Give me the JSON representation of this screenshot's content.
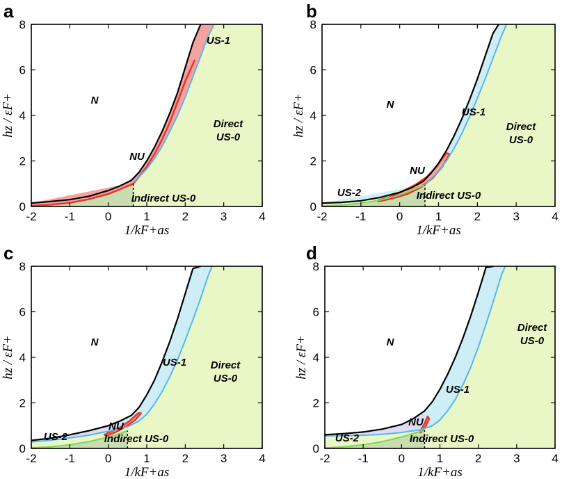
{
  "figure": {
    "colors": {
      "direct_fill": "#e9f7c6",
      "indirect_fill": "#c9ddb0",
      "us1_fill": "#cdeef7",
      "us2_fill": "#dcdcf2",
      "red_fill": "#f4a3a0",
      "red_line": "#e8342a",
      "blue_line": "#56b8e6",
      "green_line": "#7cd650",
      "black_line": "#000000"
    }
  },
  "chart_data": [
    {
      "panel": "a",
      "type": "area",
      "xlabel": "1/kF+as",
      "ylabel": "hz / εF+",
      "xlim": [
        -2,
        4
      ],
      "ylim": [
        0,
        8
      ],
      "xticks": [
        -2,
        -1,
        0,
        1,
        2,
        3,
        4
      ],
      "yticks": [
        0,
        2,
        4,
        6,
        8
      ],
      "regions": [
        {
          "id": "N",
          "lines": [
            "N"
          ]
        },
        {
          "id": "NU",
          "lines": [
            "NU"
          ]
        },
        {
          "id": "US1",
          "lines": [
            "US-1"
          ]
        },
        {
          "id": "Direct",
          "lines": [
            "Direct",
            "US-0"
          ]
        },
        {
          "id": "Indirect",
          "lines": [
            "Indirect US-0"
          ]
        }
      ],
      "series": [
        {
          "name": "N boundary (black)",
          "x": [
            -2,
            -1.5,
            -1,
            -0.5,
            0,
            0.3,
            0.6,
            0.8,
            1.0,
            1.2,
            1.4,
            1.6,
            1.8,
            2.0,
            2.2,
            2.4
          ],
          "y": [
            0.15,
            0.22,
            0.3,
            0.45,
            0.7,
            0.9,
            1.15,
            1.5,
            2.0,
            2.6,
            3.3,
            4.1,
            5.0,
            6.1,
            7.2,
            8.0
          ]
        },
        {
          "name": "US-1 lower boundary (blue)",
          "x": [
            0.65,
            0.8,
            1.0,
            1.2,
            1.4,
            1.6,
            1.8,
            2.0,
            2.2,
            2.4,
            2.6,
            2.75
          ],
          "y": [
            1.05,
            1.3,
            1.65,
            2.1,
            2.65,
            3.3,
            4.0,
            4.8,
            5.7,
            6.6,
            7.5,
            8.0
          ]
        },
        {
          "name": "Indirect upper boundary (red)",
          "x": [
            -2,
            -1.5,
            -1,
            -0.5,
            0,
            0.3,
            0.65,
            0.8,
            1.0,
            1.2,
            1.4,
            1.6,
            1.8,
            2.0,
            2.25
          ],
          "y": [
            0.03,
            0.08,
            0.16,
            0.32,
            0.55,
            0.75,
            1.0,
            1.3,
            1.75,
            2.3,
            2.95,
            3.7,
            4.6,
            5.5,
            6.45
          ]
        },
        {
          "name": "Indirect/Direct divider",
          "x": [
            0.65,
            0.65
          ],
          "y": [
            0,
            1.0
          ]
        }
      ]
    },
    {
      "panel": "b",
      "type": "area",
      "xlabel": "1/kF+as",
      "ylabel": "hz / εF+",
      "xlim": [
        -2,
        4
      ],
      "ylim": [
        0,
        8
      ],
      "xticks": [
        -2,
        -1,
        0,
        1,
        2,
        3,
        4
      ],
      "yticks": [
        0,
        2,
        4,
        6,
        8
      ],
      "regions": [
        {
          "id": "N",
          "lines": [
            "N"
          ]
        },
        {
          "id": "NU",
          "lines": [
            "NU"
          ]
        },
        {
          "id": "US1",
          "lines": [
            "US-1"
          ]
        },
        {
          "id": "US2",
          "lines": [
            "US-2"
          ]
        },
        {
          "id": "Direct",
          "lines": [
            "Direct",
            "US-0"
          ]
        },
        {
          "id": "Indirect",
          "lines": [
            "Indirect US-0"
          ]
        }
      ],
      "series": [
        {
          "name": "N boundary (black)",
          "x": [
            -2,
            -1.5,
            -1,
            -0.5,
            0,
            0.3,
            0.6,
            0.8,
            1.0,
            1.2,
            1.4,
            1.6,
            1.8,
            2.0,
            2.2,
            2.4,
            2.55
          ],
          "y": [
            0.15,
            0.18,
            0.25,
            0.4,
            0.62,
            0.82,
            1.1,
            1.45,
            1.9,
            2.45,
            3.1,
            3.85,
            4.7,
            5.6,
            6.6,
            7.6,
            8.0
          ]
        },
        {
          "name": "US-1 lower boundary (blue)",
          "x": [
            0.65,
            0.8,
            1.0,
            1.2,
            1.4,
            1.6,
            1.8,
            2.0,
            2.2,
            2.4,
            2.6,
            2.75
          ],
          "y": [
            0.95,
            1.2,
            1.55,
            2.0,
            2.55,
            3.2,
            3.95,
            4.75,
            5.6,
            6.5,
            7.4,
            8.0
          ]
        },
        {
          "name": "Indirect upper boundary (green)",
          "x": [
            -2,
            -1.5,
            -1,
            -0.5,
            0,
            0.3,
            0.65
          ],
          "y": [
            0.02,
            0.06,
            0.14,
            0.28,
            0.5,
            0.7,
            0.95
          ]
        },
        {
          "name": "Indirect/Direct divider",
          "x": [
            0.65,
            0.65
          ],
          "y": [
            0,
            0.95
          ]
        }
      ]
    },
    {
      "panel": "c",
      "type": "area",
      "xlabel": "1/kF+as",
      "ylabel": "hz / εF+",
      "xlim": [
        -2,
        4
      ],
      "ylim": [
        0,
        8
      ],
      "xticks": [
        -2,
        -1,
        0,
        1,
        2,
        3,
        4
      ],
      "yticks": [
        0,
        2,
        4,
        6,
        8
      ],
      "regions": [
        {
          "id": "N",
          "lines": [
            "N"
          ]
        },
        {
          "id": "NU",
          "lines": [
            "NU"
          ]
        },
        {
          "id": "US1",
          "lines": [
            "US-1"
          ]
        },
        {
          "id": "US2",
          "lines": [
            "US-2"
          ]
        },
        {
          "id": "Direct",
          "lines": [
            "Direct",
            "US-0"
          ]
        },
        {
          "id": "Indirect",
          "lines": [
            "Indirect US-0"
          ]
        }
      ],
      "series": [
        {
          "name": "N boundary (black)",
          "x": [
            -2,
            -1.5,
            -1,
            -0.5,
            0,
            0.3,
            0.6,
            0.8,
            1.0,
            1.2,
            1.4,
            1.6,
            1.8,
            2.0,
            2.2,
            2.4
          ],
          "y": [
            0.35,
            0.45,
            0.6,
            0.78,
            1.0,
            1.2,
            1.45,
            1.8,
            2.35,
            3.0,
            3.8,
            4.7,
            5.7,
            6.8,
            7.9,
            8.0
          ]
        },
        {
          "name": "US-1 lower boundary (blue)",
          "x": [
            -2,
            -1.5,
            -1,
            -0.5,
            0,
            0.5,
            0.8,
            1.0,
            1.2,
            1.4,
            1.6,
            1.8,
            2.0,
            2.2,
            2.4,
            2.6,
            2.7
          ],
          "y": [
            0.28,
            0.36,
            0.46,
            0.58,
            0.75,
            0.95,
            1.2,
            1.5,
            1.95,
            2.5,
            3.15,
            3.9,
            4.75,
            5.65,
            6.6,
            7.6,
            8.0
          ]
        },
        {
          "name": "Indirect upper boundary (green)",
          "x": [
            -2,
            -1.5,
            -1,
            -0.5,
            0,
            0.3,
            0.5
          ],
          "y": [
            0.02,
            0.07,
            0.16,
            0.3,
            0.5,
            0.65,
            0.78
          ]
        },
        {
          "name": "Indirect/Direct divider",
          "x": [
            0.5,
            0.5
          ],
          "y": [
            0,
            0.78
          ]
        }
      ]
    },
    {
      "panel": "d",
      "type": "area",
      "xlabel": "1/kF+as",
      "ylabel": "hz / εF+",
      "xlim": [
        -2,
        4
      ],
      "ylim": [
        0,
        8
      ],
      "xticks": [
        -2,
        -1,
        0,
        1,
        2,
        3,
        4
      ],
      "yticks": [
        0,
        2,
        4,
        6,
        8
      ],
      "regions": [
        {
          "id": "N",
          "lines": [
            "N"
          ]
        },
        {
          "id": "NU",
          "lines": [
            "NU"
          ]
        },
        {
          "id": "US1",
          "lines": [
            "US-1"
          ]
        },
        {
          "id": "US2",
          "lines": [
            "US-2"
          ]
        },
        {
          "id": "Direct",
          "lines": [
            "Direct",
            "US-0"
          ]
        },
        {
          "id": "Indirect",
          "lines": [
            "Indirect US-0"
          ]
        }
      ],
      "series": [
        {
          "name": "N boundary (black)",
          "x": [
            -2,
            -1.5,
            -1,
            -0.5,
            0,
            0.3,
            0.6,
            0.8,
            1.0,
            1.2,
            1.4,
            1.6,
            1.8,
            2.0,
            2.2,
            2.4
          ],
          "y": [
            0.6,
            0.65,
            0.72,
            0.85,
            1.05,
            1.3,
            1.65,
            2.05,
            2.6,
            3.25,
            4.0,
            4.85,
            5.8,
            6.85,
            7.95,
            8.0
          ]
        },
        {
          "name": "US-1 lower boundary (blue)",
          "x": [
            -2,
            -1.5,
            -1,
            -0.5,
            0,
            0.5,
            0.8,
            1.0,
            1.2,
            1.4,
            1.6,
            1.8,
            2.0,
            2.2,
            2.4,
            2.6,
            2.7
          ],
          "y": [
            0.55,
            0.56,
            0.58,
            0.62,
            0.7,
            0.82,
            1.0,
            1.25,
            1.65,
            2.15,
            2.8,
            3.55,
            4.45,
            5.45,
            6.5,
            7.6,
            8.0
          ]
        },
        {
          "name": "Indirect upper boundary (green)",
          "x": [
            -2,
            -1.5,
            -1,
            -0.5,
            0,
            0.3,
            0.6
          ],
          "y": [
            0.02,
            0.07,
            0.16,
            0.3,
            0.5,
            0.65,
            0.8
          ]
        },
        {
          "name": "Indirect/Direct divider",
          "x": [
            0.6,
            0.6
          ],
          "y": [
            0,
            0.8
          ]
        }
      ]
    }
  ]
}
